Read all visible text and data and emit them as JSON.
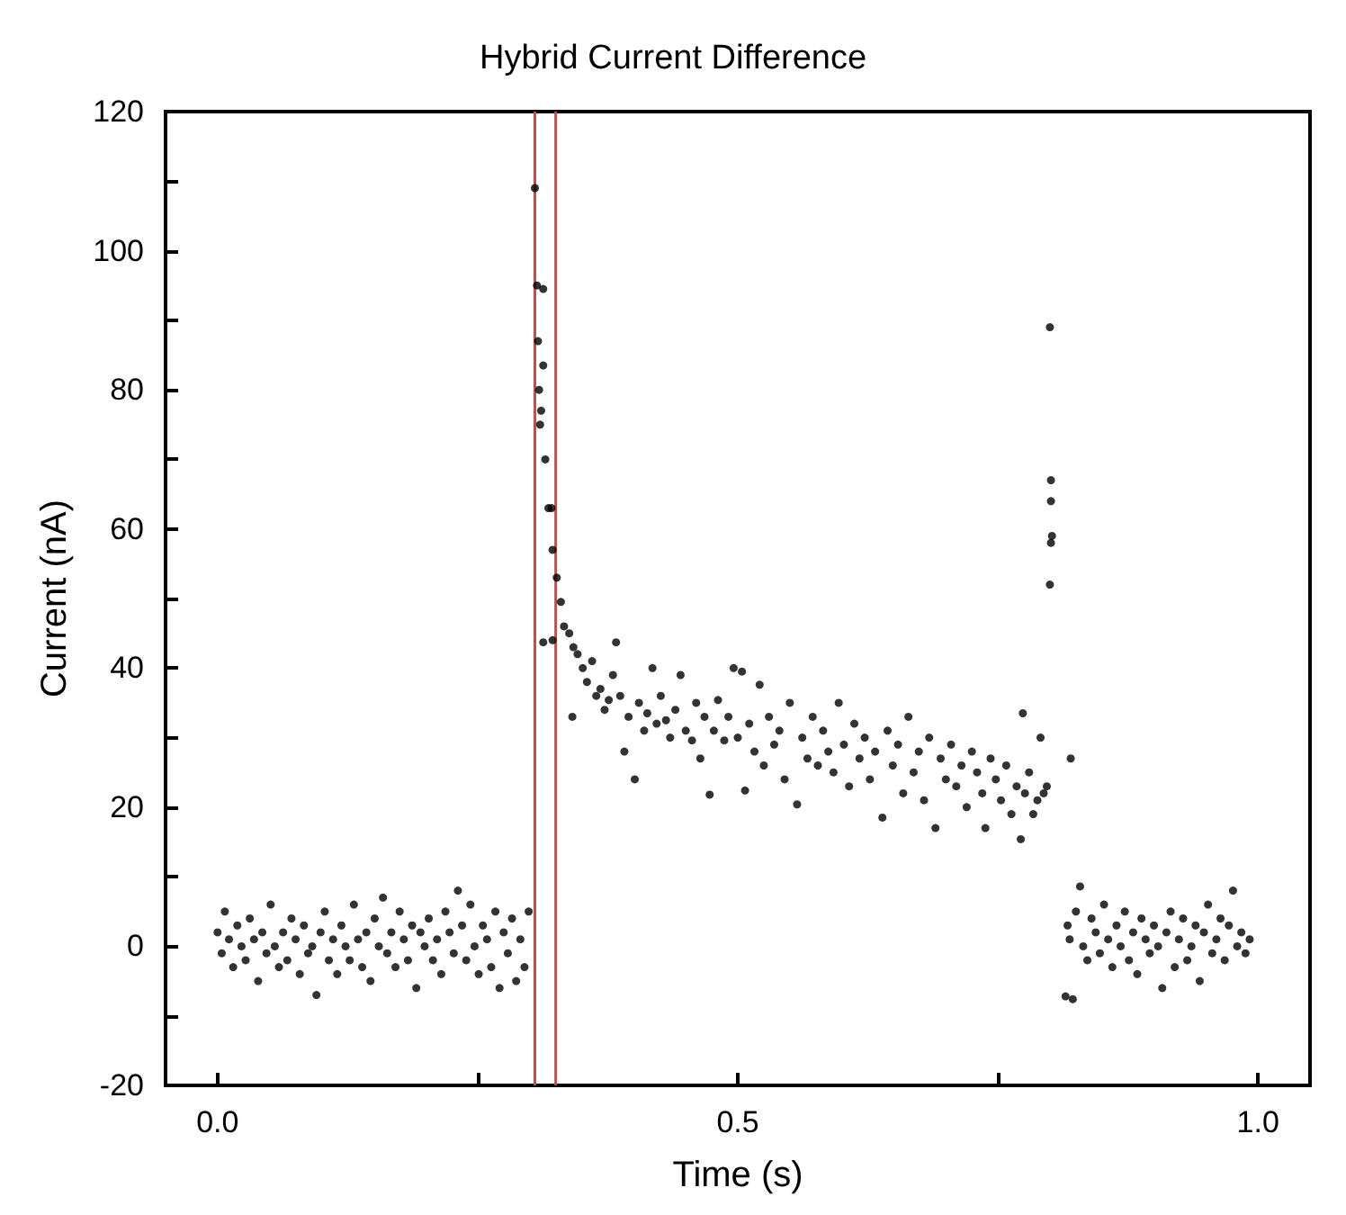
{
  "chart_data": {
    "type": "scatter",
    "title": "Hybrid Current Difference",
    "xlabel": "Time (s)",
    "ylabel": "Current (nA)",
    "xlim": [
      -0.05,
      1.05
    ],
    "ylim": [
      -20,
      120
    ],
    "xticks": [
      {
        "value": 0,
        "label": "0.0"
      },
      {
        "value": 0.25,
        "label": null
      },
      0.5,
      {
        "value": 0.75,
        "label": null
      },
      {
        "value": 1,
        "label": "1.0"
      }
    ],
    "yticks": [
      -20,
      {
        "value": -10,
        "label": null
      },
      0,
      {
        "value": 10,
        "label": null
      },
      20,
      {
        "value": 30,
        "label": null
      },
      40,
      {
        "value": 50,
        "label": null
      },
      60,
      {
        "value": 70,
        "label": null
      },
      80,
      {
        "value": 90,
        "label": null
      },
      100,
      {
        "value": 110,
        "label": null
      },
      120
    ],
    "grid": false,
    "marker": "circle",
    "ref_lines": [
      {
        "axis": "x",
        "value": 0.305,
        "color": "#c0504d"
      },
      {
        "axis": "x",
        "value": 0.325,
        "color": "#c0504d"
      }
    ],
    "series": [
      {
        "color": "#000000",
        "x": [
          0.0,
          0.004,
          0.007,
          0.011,
          0.015,
          0.019,
          0.023,
          0.027,
          0.031,
          0.035,
          0.039,
          0.043,
          0.047,
          0.051,
          0.055,
          0.059,
          0.063,
          0.067,
          0.071,
          0.075,
          0.079,
          0.083,
          0.087,
          0.091,
          0.095,
          0.099,
          0.103,
          0.107,
          0.111,
          0.115,
          0.119,
          0.123,
          0.127,
          0.131,
          0.135,
          0.139,
          0.143,
          0.147,
          0.151,
          0.155,
          0.159,
          0.163,
          0.167,
          0.171,
          0.175,
          0.179,
          0.183,
          0.187,
          0.191,
          0.195,
          0.199,
          0.203,
          0.207,
          0.211,
          0.215,
          0.219,
          0.223,
          0.227,
          0.231,
          0.235,
          0.239,
          0.243,
          0.247,
          0.251,
          0.255,
          0.259,
          0.263,
          0.267,
          0.271,
          0.275,
          0.279,
          0.283,
          0.287,
          0.291,
          0.295,
          0.299,
          0.305,
          0.307,
          0.313,
          0.308,
          0.313,
          0.309,
          0.311,
          0.31,
          0.315,
          0.318,
          0.321,
          0.322,
          0.326,
          0.313,
          0.322,
          0.33,
          0.333,
          0.338,
          0.342,
          0.341,
          0.346,
          0.351,
          0.355,
          0.36,
          0.364,
          0.368,
          0.372,
          0.376,
          0.38,
          0.383,
          0.387,
          0.391,
          0.395,
          0.401,
          0.405,
          0.41,
          0.413,
          0.418,
          0.422,
          0.426,
          0.431,
          0.435,
          0.44,
          0.445,
          0.45,
          0.456,
          0.46,
          0.464,
          0.468,
          0.473,
          0.477,
          0.481,
          0.487,
          0.491,
          0.496,
          0.5,
          0.504,
          0.507,
          0.511,
          0.516,
          0.521,
          0.525,
          0.53,
          0.535,
          0.54,
          0.545,
          0.55,
          0.557,
          0.562,
          0.567,
          0.572,
          0.577,
          0.582,
          0.587,
          0.592,
          0.597,
          0.602,
          0.607,
          0.612,
          0.617,
          0.622,
          0.627,
          0.632,
          0.639,
          0.644,
          0.649,
          0.654,
          0.659,
          0.664,
          0.669,
          0.674,
          0.679,
          0.684,
          0.69,
          0.695,
          0.7,
          0.705,
          0.71,
          0.715,
          0.72,
          0.725,
          0.73,
          0.735,
          0.738,
          0.743,
          0.748,
          0.753,
          0.758,
          0.763,
          0.768,
          0.772,
          0.774,
          0.776,
          0.78,
          0.784,
          0.788,
          0.791,
          0.794,
          0.797,
          0.8,
          0.801,
          0.801,
          0.802,
          0.801,
          0.8,
          0.82,
          0.815,
          0.817,
          0.819,
          0.822,
          0.825,
          0.829,
          0.832,
          0.836,
          0.84,
          0.844,
          0.848,
          0.852,
          0.856,
          0.86,
          0.864,
          0.868,
          0.872,
          0.876,
          0.88,
          0.884,
          0.888,
          0.892,
          0.896,
          0.9,
          0.904,
          0.908,
          0.912,
          0.916,
          0.92,
          0.924,
          0.928,
          0.932,
          0.936,
          0.94,
          0.944,
          0.948,
          0.952,
          0.956,
          0.96,
          0.964,
          0.968,
          0.972,
          0.976,
          0.98,
          0.984,
          0.988,
          0.992
        ],
        "values": [
          2,
          -1,
          5,
          1,
          -3,
          3,
          0,
          -2,
          4,
          1,
          -5,
          2,
          -1,
          6,
          0,
          -3,
          2,
          -2,
          4,
          1,
          -4,
          3,
          -1,
          0,
          -7,
          2,
          5,
          -2,
          1,
          -4,
          3,
          0,
          -2,
          6,
          1,
          -3,
          2,
          -5,
          4,
          0,
          7,
          -1,
          2,
          -3,
          5,
          1,
          -2,
          3,
          -6,
          2,
          0,
          4,
          -2,
          1,
          -4,
          5,
          2,
          -1,
          8,
          3,
          -2,
          6,
          0,
          -4,
          3,
          1,
          -3,
          5,
          -6,
          2,
          -1,
          4,
          -5,
          1,
          -3,
          5,
          109,
          95,
          94.5,
          87,
          83.5,
          80,
          77,
          75,
          70,
          63,
          63,
          57,
          53,
          43.7,
          44,
          49.5,
          46,
          45,
          43,
          33,
          42,
          40,
          38,
          41,
          36,
          37,
          34,
          35.4,
          39,
          43.7,
          36,
          28,
          33,
          24,
          35,
          31,
          33.5,
          40,
          32,
          36,
          32.5,
          30,
          34,
          39,
          31,
          29.6,
          35,
          27,
          33,
          21.8,
          31,
          35.4,
          29.6,
          33,
          40,
          30,
          39.5,
          22.4,
          32,
          28,
          37.6,
          26,
          33,
          29,
          31,
          24,
          35,
          20.4,
          30,
          27,
          33,
          26,
          31,
          28,
          25,
          35,
          29,
          23,
          32,
          27,
          30,
          24,
          28,
          18.5,
          31,
          26,
          29,
          22,
          33,
          25,
          28,
          21,
          30,
          17,
          27,
          24,
          29,
          23,
          26,
          20,
          28,
          25,
          22,
          17,
          27,
          24,
          21,
          26,
          19,
          23,
          15.4,
          33.5,
          22,
          25,
          19,
          21,
          30,
          22,
          23,
          89,
          67,
          64,
          59,
          58,
          52,
          27,
          -7.2,
          3,
          1,
          -7.6,
          5,
          8.6,
          0,
          -2,
          4,
          2,
          -1,
          6,
          1,
          -3,
          3,
          0,
          5,
          -2,
          2,
          -4,
          4,
          1,
          -1,
          3,
          0,
          -6,
          2,
          5,
          -3,
          1,
          4,
          -2,
          0,
          3,
          -5,
          2,
          6,
          -1,
          1,
          4,
          -2,
          3,
          8,
          0,
          2,
          -1,
          1
        ]
      }
    ]
  }
}
